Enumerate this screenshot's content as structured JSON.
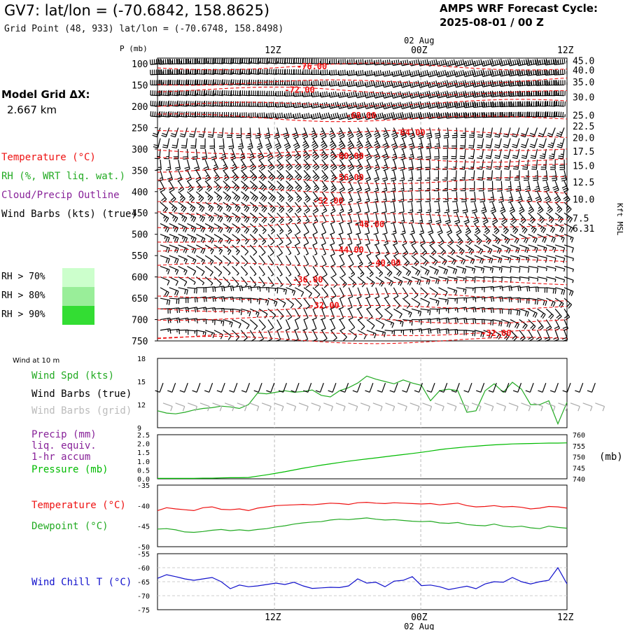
{
  "header": {
    "title": "GV7:  lat/lon = (-70.6842, 158.8625)",
    "subtitle": "Grid Point (48, 933) lat/lon = (-70.6748, 158.8498)",
    "cycle_label": "AMPS WRF Forecast Cycle:",
    "cycle_value": "2025-08-01 / 00  Z"
  },
  "model_grid": {
    "label": "Model Grid ΔX:",
    "value": "2.667 km"
  },
  "legend": {
    "temperature": "Temperature (°C)",
    "rh": "RH (%, WRT liq. wat.)",
    "cloud": "Cloud/Precip Outline",
    "wind": "Wind Barbs (kts) (true)",
    "rh_levels": [
      {
        "label": "RH > 70%",
        "color": "#ccffcc"
      },
      {
        "label": "RH > 80%",
        "color": "#99ee99"
      },
      {
        "label": "RH > 90%",
        "color": "#33dd33"
      }
    ]
  },
  "colors": {
    "temperature": "#ee1111",
    "rh": "#22aa22",
    "cloud": "#882299",
    "wind": "#000000",
    "grid_wind": "#aaaaaa",
    "pressure": "#00bb00",
    "wind_chill": "#1111cc"
  },
  "time_axis": {
    "labels": [
      {
        "text": "12Z",
        "frac": 0.2857
      },
      {
        "text": "00Z",
        "frac": 0.6429
      },
      {
        "text": "12Z",
        "frac": 1.0
      }
    ],
    "date_label": "02 Aug",
    "date_frac": 0.6429
  },
  "chart_data": [
    {
      "type": "line",
      "title": "",
      "ylabel": "P (mb)",
      "y2label": "Kft MSL",
      "ylim": [
        100,
        750
      ],
      "yticks": [
        "100",
        "150",
        "200",
        "250",
        "300",
        "350",
        "400",
        "450",
        "500",
        "550",
        "600",
        "650",
        "700",
        "750"
      ],
      "height_ticks": [
        {
          "text": "45.0",
          "p": 93
        },
        {
          "text": "40.0",
          "p": 115
        },
        {
          "text": "35.0",
          "p": 143
        },
        {
          "text": "30.0",
          "p": 178
        },
        {
          "text": "25.0",
          "p": 221
        },
        {
          "text": "22.5",
          "p": 246
        },
        {
          "text": "20.0",
          "p": 273
        },
        {
          "text": "17.5",
          "p": 305
        },
        {
          "text": "15.0",
          "p": 339
        },
        {
          "text": "12.5",
          "p": 377
        },
        {
          "text": "10.0",
          "p": 418
        },
        {
          "text": "7.5",
          "p": 462
        },
        {
          "text": "6.31",
          "p": 486
        }
      ],
      "temperature_contours": [
        {
          "label": "-76.00",
          "at": [
            0.34,
            110
          ]
        },
        {
          "label": "-72.00",
          "at": [
            0.31,
            165
          ]
        },
        {
          "label": "-68.00",
          "at": [
            0.46,
            225
          ]
        },
        {
          "label": "-64.00",
          "at": [
            0.58,
            265
          ]
        },
        {
          "label": "-60.00",
          "at": [
            0.43,
            320
          ]
        },
        {
          "label": "-56.00",
          "at": [
            0.43,
            370
          ]
        },
        {
          "label": "-52.00",
          "at": [
            0.38,
            425
          ]
        },
        {
          "label": "-48.00",
          "at": [
            0.48,
            480
          ]
        },
        {
          "label": "-44.00",
          "at": [
            0.43,
            540
          ]
        },
        {
          "label": "-40.00",
          "at": [
            0.52,
            570
          ]
        },
        {
          "label": "-36.00",
          "at": [
            0.33,
            610
          ]
        },
        {
          "label": "-32.00",
          "at": [
            0.37,
            670
          ]
        },
        {
          "label": "-32.00",
          "at": [
            0.79,
            735
          ]
        }
      ]
    },
    {
      "type": "line",
      "title": "Wind at 10 m",
      "series_labels": [
        "Wind Spd (kts)",
        "Wind Barbs (true)",
        "Wind Barbs (grid)"
      ],
      "ylim": [
        9,
        18
      ],
      "yticks": [
        "9",
        "12",
        "15",
        "18"
      ],
      "wind_speed": [
        11.2,
        10.9,
        10.8,
        11.0,
        11.3,
        11.5,
        11.6,
        11.8,
        11.7,
        11.5,
        12.0,
        13.5,
        13.4,
        13.6,
        13.8,
        13.6,
        13.7,
        13.9,
        13.2,
        13.0,
        13.8,
        14.2,
        14.8,
        15.7,
        15.3,
        15.0,
        14.7,
        15.2,
        14.8,
        14.5,
        12.5,
        13.8,
        14.0,
        13.8,
        11.0,
        11.2,
        13.8,
        14.7,
        13.6,
        14.9,
        14.0,
        12.0,
        12.0,
        12.5,
        9.5,
        12.3
      ],
      "barb_rows": [
        {
          "y": 14.8,
          "color": "#000000",
          "type": "true"
        },
        {
          "y": 12.2,
          "color": "#aaaaaa",
          "type": "grid"
        }
      ]
    },
    {
      "type": "line",
      "series_labels": [
        "Precip (mm)",
        "liq. equiv.",
        "1-hr accum",
        "Pressure (mb)"
      ],
      "ylim": [
        0,
        2.5
      ],
      "yticks": [
        "0.0",
        "0.5",
        "1.0",
        "1.5",
        "2.0",
        "2.5"
      ],
      "y2lim": [
        740,
        760
      ],
      "y2ticks": [
        "740",
        "745",
        "750",
        "755",
        "760"
      ],
      "y2label": "(mb)",
      "pressure": [
        740.2,
        740.2,
        740.2,
        740.2,
        740.2,
        740.3,
        740.3,
        740.4,
        740.5,
        740.5,
        740.6,
        741.2,
        741.8,
        742.5,
        743.2,
        744.0,
        744.8,
        745.5,
        746.2,
        746.8,
        747.4,
        748.0,
        748.5,
        749.0,
        749.5,
        750.0,
        750.5,
        751.0,
        751.5,
        752.0,
        752.6,
        753.2,
        753.7,
        754.1,
        754.5,
        754.8,
        755.1,
        755.4,
        755.6,
        755.8,
        755.9,
        756.0,
        756.1,
        756.2,
        756.2,
        756.3
      ]
    },
    {
      "type": "line",
      "series_labels": [
        "Temperature (°C)",
        "Dewpoint (°C)"
      ],
      "ylim": [
        -50,
        -35
      ],
      "yticks": [
        "-35",
        "-40",
        "-45",
        "-50"
      ],
      "temperature": [
        -41.2,
        -40.5,
        -40.8,
        -41.0,
        -41.2,
        -40.5,
        -40.3,
        -40.9,
        -41.0,
        -40.8,
        -41.2,
        -40.6,
        -40.3,
        -40.0,
        -39.9,
        -39.8,
        -39.7,
        -39.8,
        -39.6,
        -39.4,
        -39.5,
        -39.7,
        -39.3,
        -39.2,
        -39.4,
        -39.5,
        -39.3,
        -39.4,
        -39.5,
        -39.6,
        -39.5,
        -39.8,
        -39.6,
        -39.4,
        -40.0,
        -40.3,
        -40.2,
        -40.0,
        -40.3,
        -40.2,
        -40.4,
        -40.8,
        -40.6,
        -40.2,
        -40.3,
        -40.6
      ],
      "dewpoint": [
        -45.7,
        -45.6,
        -45.9,
        -46.4,
        -46.5,
        -46.3,
        -46.0,
        -45.8,
        -46.1,
        -45.9,
        -46.1,
        -45.8,
        -45.6,
        -45.2,
        -44.9,
        -44.5,
        -44.2,
        -44.0,
        -43.9,
        -43.5,
        -43.3,
        -43.4,
        -43.2,
        -43.0,
        -43.3,
        -43.5,
        -43.4,
        -43.6,
        -43.8,
        -43.9,
        -43.8,
        -44.2,
        -44.3,
        -44.1,
        -44.6,
        -44.8,
        -44.9,
        -44.5,
        -45.0,
        -45.2,
        -45.0,
        -45.4,
        -45.6,
        -45.0,
        -45.3,
        -45.5
      ]
    },
    {
      "type": "line",
      "series_labels": [
        "Wind Chill T (°C)"
      ],
      "ylim": [
        -75,
        -55
      ],
      "yticks": [
        "-55",
        "-60",
        "-65",
        "-70",
        "-75"
      ],
      "wind_chill": [
        -63.8,
        -62.5,
        -63.2,
        -64.0,
        -64.5,
        -64.0,
        -63.5,
        -65.0,
        -67.5,
        -66.2,
        -66.8,
        -66.5,
        -66.0,
        -65.5,
        -66.0,
        -65.2,
        -66.5,
        -67.4,
        -67.2,
        -67.0,
        -67.1,
        -66.5,
        -64.0,
        -65.5,
        -65.2,
        -66.8,
        -64.8,
        -64.5,
        -63.2,
        -66.4,
        -66.2,
        -66.8,
        -67.8,
        -67.2,
        -66.6,
        -67.5,
        -65.8,
        -65.0,
        -65.2,
        -63.5,
        -65.0,
        -65.8,
        -65.0,
        -64.5,
        -60.0,
        -65.8
      ]
    }
  ]
}
